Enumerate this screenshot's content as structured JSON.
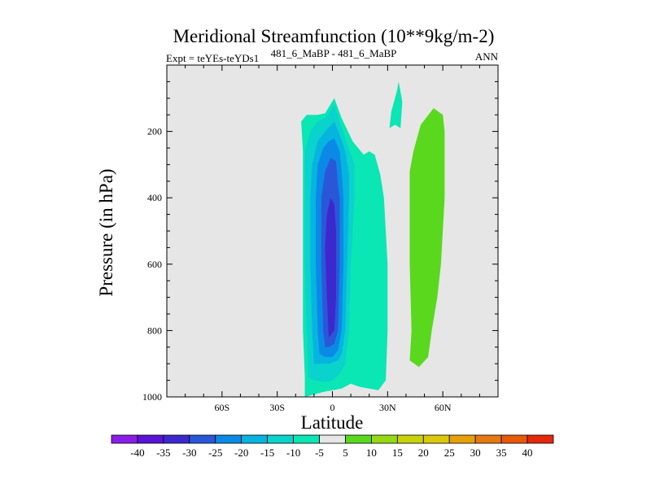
{
  "colors": {
    "plot_background": "#e6e6e6",
    "frame": "#000000"
  },
  "chart_data": {
    "type": "contour",
    "title": "Meridional Streamfunction (10**9kg/m-2)",
    "subtitle_left": "Expt = teYEs-teYDs1",
    "subtitle_center": "481_6_MaBP - 481_6_MaBP",
    "subtitle_right": "ANN",
    "xlabel": "Latitude",
    "ylabel": "Pressure (in hPa)",
    "xlim": [
      -90,
      90
    ],
    "ylim": [
      1000,
      0
    ],
    "x_ticks": [
      {
        "value": -60,
        "label": "60S"
      },
      {
        "value": -30,
        "label": "30S"
      },
      {
        "value": 0,
        "label": "0"
      },
      {
        "value": 30,
        "label": "30N"
      },
      {
        "value": 60,
        "label": "60N"
      }
    ],
    "y_ticks": [
      {
        "value": 200,
        "label": "200"
      },
      {
        "value": 400,
        "label": "400"
      },
      {
        "value": 600,
        "label": "600"
      },
      {
        "value": 800,
        "label": "800"
      },
      {
        "value": 1000,
        "label": "1000"
      }
    ],
    "colorbar": {
      "levels": [
        "-40",
        "-35",
        "-30",
        "-25",
        "-20",
        "-15",
        "-10",
        "-5",
        "5",
        "10",
        "15",
        "20",
        "25",
        "30",
        "35",
        "40"
      ],
      "colors": [
        "#8a1ee6",
        "#5a14d8",
        "#3c28cc",
        "#2a57d8",
        "#0a8ae6",
        "#06b4e0",
        "#0ad2cc",
        "#0ae6b4",
        "#e6e6e6",
        "#5ad81e",
        "#96d814",
        "#c8d20a",
        "#dcc80a",
        "#e6a00a",
        "#e67814",
        "#e65a0a",
        "#e6280a"
      ]
    },
    "regions": [
      {
        "name": "negative-cell-level-10",
        "fill_index": 7,
        "points": [
          [
            -15,
            1000
          ],
          [
            -15,
            940
          ],
          [
            -16,
            800
          ],
          [
            -16,
            600
          ],
          [
            -16,
            400
          ],
          [
            -16,
            260
          ],
          [
            -17,
            170
          ],
          [
            -14,
            150
          ],
          [
            -8,
            150
          ],
          [
            -4,
            145
          ],
          [
            1,
            100
          ],
          [
            5,
            160
          ],
          [
            11,
            230
          ],
          [
            17,
            270
          ],
          [
            20,
            260
          ],
          [
            23,
            270
          ],
          [
            26,
            330
          ],
          [
            28,
            400
          ],
          [
            30,
            600
          ],
          [
            30,
            800
          ],
          [
            29,
            950
          ],
          [
            25,
            980
          ],
          [
            15,
            970
          ],
          [
            10,
            960
          ],
          [
            5,
            975
          ],
          [
            -5,
            985
          ]
        ]
      },
      {
        "name": "negative-cell-level-15",
        "fill_index": 6,
        "points": [
          [
            -13,
            940
          ],
          [
            -14,
            800
          ],
          [
            -15,
            600
          ],
          [
            -15,
            400
          ],
          [
            -15,
            260
          ],
          [
            -12,
            200
          ],
          [
            -8,
            170
          ],
          [
            -4,
            160
          ],
          [
            1,
            120
          ],
          [
            4,
            170
          ],
          [
            8,
            240
          ],
          [
            12,
            300
          ],
          [
            12,
            400
          ],
          [
            10,
            600
          ],
          [
            9,
            800
          ],
          [
            7,
            900
          ],
          [
            4,
            930
          ],
          [
            0,
            950
          ],
          [
            -4,
            955
          ],
          [
            -10,
            950
          ]
        ]
      },
      {
        "name": "negative-cell-level-20",
        "fill_index": 5,
        "points": [
          [
            -10,
            900
          ],
          [
            -11,
            800
          ],
          [
            -12,
            600
          ],
          [
            -12,
            400
          ],
          [
            -11,
            300
          ],
          [
            -8,
            230
          ],
          [
            -4,
            200
          ],
          [
            1,
            170
          ],
          [
            4,
            210
          ],
          [
            7,
            260
          ],
          [
            9,
            330
          ],
          [
            9,
            400
          ],
          [
            8,
            600
          ],
          [
            7,
            800
          ],
          [
            5,
            870
          ],
          [
            3,
            890
          ],
          [
            -2,
            900
          ]
        ]
      },
      {
        "name": "negative-cell-level-25",
        "fill_index": 4,
        "points": [
          [
            -7,
            870
          ],
          [
            -8,
            800
          ],
          [
            -9,
            600
          ],
          [
            -9,
            400
          ],
          [
            -8,
            300
          ],
          [
            -5,
            250
          ],
          [
            -2,
            230
          ],
          [
            1,
            220
          ],
          [
            4,
            260
          ],
          [
            5,
            320
          ],
          [
            6,
            400
          ],
          [
            6,
            600
          ],
          [
            5,
            800
          ],
          [
            3,
            860
          ],
          [
            0,
            880
          ],
          [
            -4,
            880
          ]
        ]
      },
      {
        "name": "negative-cell-level-30",
        "fill_index": 3,
        "points": [
          [
            -4,
            850
          ],
          [
            -5,
            800
          ],
          [
            -6,
            600
          ],
          [
            -6,
            400
          ],
          [
            -4,
            320
          ],
          [
            -1,
            280
          ],
          [
            2,
            290
          ],
          [
            3,
            360
          ],
          [
            4,
            400
          ],
          [
            4,
            600
          ],
          [
            3,
            800
          ],
          [
            1,
            840
          ],
          [
            -2,
            850
          ]
        ]
      },
      {
        "name": "negative-cell-level-35",
        "fill_index": 2,
        "points": [
          [
            -2,
            820
          ],
          [
            -3,
            700
          ],
          [
            -4,
            550
          ],
          [
            -3,
            450
          ],
          [
            -1,
            400
          ],
          [
            1,
            420
          ],
          [
            2,
            500
          ],
          [
            2,
            700
          ],
          [
            1,
            800
          ]
        ]
      },
      {
        "name": "upper-filament",
        "fill_index": 7,
        "points": [
          [
            31,
            190
          ],
          [
            32,
            140
          ],
          [
            35,
            80
          ],
          [
            36,
            50
          ],
          [
            38,
            110
          ],
          [
            37,
            190
          ],
          [
            34,
            180
          ]
        ]
      },
      {
        "name": "positive-cell-60N",
        "fill_index": 9,
        "points": [
          [
            42,
            890
          ],
          [
            43,
            800
          ],
          [
            42,
            600
          ],
          [
            42,
            420
          ],
          [
            42,
            320
          ],
          [
            44,
            260
          ],
          [
            48,
            180
          ],
          [
            55,
            130
          ],
          [
            60,
            150
          ],
          [
            61,
            200
          ],
          [
            61,
            400
          ],
          [
            59,
            600
          ],
          [
            57,
            700
          ],
          [
            54,
            800
          ],
          [
            52,
            880
          ],
          [
            47,
            910
          ]
        ]
      }
    ]
  }
}
